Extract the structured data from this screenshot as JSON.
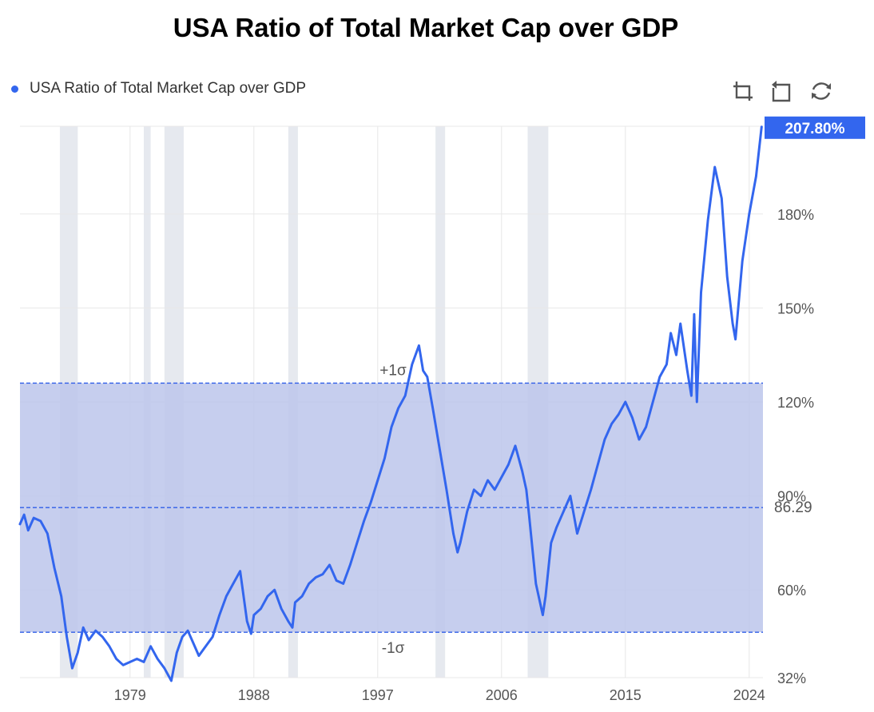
{
  "page": {
    "title": "USA Ratio of Total Market Cap over GDP"
  },
  "toolbar": {
    "icons": [
      "zoom-icon",
      "zoom-reset-icon",
      "restore-icon"
    ]
  },
  "chart_data": {
    "type": "line",
    "title": "USA Ratio of Total Market Cap over GDP",
    "series": [
      {
        "name": "USA Ratio of Total Market Cap over GDP",
        "color": "#3366ee",
        "x": [
          1971.0,
          1971.3,
          1971.6,
          1972.0,
          1972.5,
          1973.0,
          1973.5,
          1974.0,
          1974.4,
          1974.8,
          1975.2,
          1975.6,
          1976.0,
          1976.5,
          1977.0,
          1977.5,
          1978.0,
          1978.5,
          1979.0,
          1979.5,
          1980.0,
          1980.5,
          1981.0,
          1981.5,
          1982.0,
          1982.4,
          1982.8,
          1983.2,
          1983.6,
          1984.0,
          1984.5,
          1985.0,
          1985.5,
          1986.0,
          1986.5,
          1987.0,
          1987.5,
          1987.8,
          1988.0,
          1988.5,
          1989.0,
          1989.5,
          1990.0,
          1990.5,
          1990.8,
          1991.0,
          1991.5,
          1992.0,
          1992.5,
          1993.0,
          1993.5,
          1994.0,
          1994.5,
          1995.0,
          1995.5,
          1996.0,
          1996.5,
          1997.0,
          1997.5,
          1998.0,
          1998.5,
          1999.0,
          1999.5,
          2000.0,
          2000.3,
          2000.6,
          2001.0,
          2001.5,
          2002.0,
          2002.5,
          2002.8,
          2003.0,
          2003.5,
          2004.0,
          2004.5,
          2005.0,
          2005.5,
          2006.0,
          2006.5,
          2007.0,
          2007.5,
          2007.8,
          2008.0,
          2008.5,
          2009.0,
          2009.2,
          2009.6,
          2010.0,
          2010.5,
          2011.0,
          2011.5,
          2012.0,
          2012.5,
          2013.0,
          2013.5,
          2014.0,
          2014.5,
          2015.0,
          2015.5,
          2016.0,
          2016.5,
          2017.0,
          2017.5,
          2018.0,
          2018.3,
          2018.7,
          2019.0,
          2019.5,
          2019.8,
          2020.0,
          2020.2,
          2020.5,
          2021.0,
          2021.5,
          2022.0,
          2022.4,
          2022.8,
          2023.0,
          2023.5,
          2024.0,
          2024.5,
          2024.9
        ],
        "y": [
          81,
          84,
          79,
          83,
          82,
          78,
          67,
          58,
          45,
          35,
          40,
          48,
          44,
          47,
          45,
          42,
          38,
          36,
          37,
          38,
          37,
          42,
          38,
          35,
          31,
          40,
          45,
          47,
          43,
          39,
          42,
          45,
          52,
          58,
          62,
          66,
          50,
          46,
          52,
          54,
          58,
          60,
          54,
          50,
          48,
          56,
          58,
          62,
          64,
          65,
          68,
          63,
          62,
          68,
          75,
          82,
          88,
          95,
          102,
          112,
          118,
          122,
          132,
          138,
          130,
          128,
          118,
          105,
          92,
          78,
          72,
          75,
          85,
          92,
          90,
          95,
          92,
          96,
          100,
          106,
          98,
          92,
          84,
          62,
          52,
          58,
          75,
          80,
          85,
          90,
          78,
          85,
          92,
          100,
          108,
          113,
          116,
          120,
          115,
          108,
          112,
          120,
          128,
          132,
          142,
          135,
          145,
          130,
          122,
          148,
          120,
          155,
          178,
          195,
          185,
          160,
          145,
          140,
          165,
          180,
          192,
          207.8
        ]
      }
    ],
    "x_ticks": [
      "1979",
      "1988",
      "1997",
      "2006",
      "2015",
      "2024"
    ],
    "y_ticks": [
      "32%",
      "60%",
      "90%",
      "120%",
      "150%",
      "180%"
    ],
    "xlim": [
      1971.0,
      2025.0
    ],
    "ylim": [
      32,
      208
    ],
    "reference_lines": [
      {
        "label": "+1σ",
        "value": 126
      },
      {
        "label": "86.29",
        "value": 86.29
      },
      {
        "label": "-1σ",
        "value": 46.5
      }
    ],
    "band": [
      46.5,
      126
    ],
    "recessions": [
      [
        1973.9,
        1975.2
      ],
      [
        1980.0,
        1980.5
      ],
      [
        1981.5,
        1982.9
      ],
      [
        1990.5,
        1991.2
      ],
      [
        2001.2,
        2001.9
      ],
      [
        2007.9,
        2009.4
      ]
    ],
    "last_value_label": "207.80%",
    "grid": true,
    "legend_position": "top-left",
    "colors": {
      "line": "#3366ee",
      "band": "#bcc5eb",
      "recession": "#e6e9ef",
      "reference": "#2f5de8",
      "grid": "#e8e8e8",
      "label_bg": "#3366ee",
      "axis_text": "#555555"
    }
  }
}
